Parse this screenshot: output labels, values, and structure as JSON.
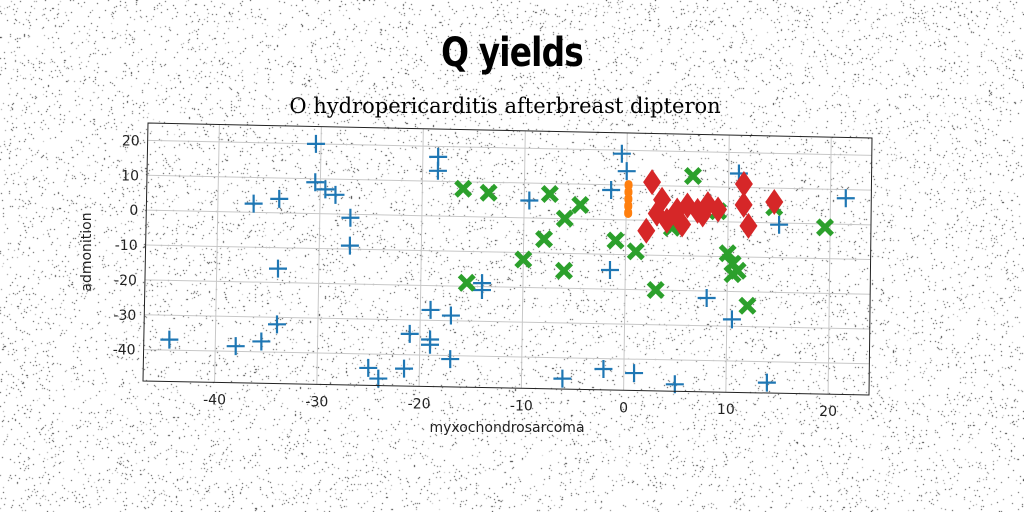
{
  "chart_data": {
    "type": "scatter",
    "title": "Q yields",
    "subtitle": "O hydropericarditis afterbreast dipteron",
    "xlabel": "myxochondrosarcoma",
    "ylabel": "admonition",
    "xlim": [
      -47,
      24
    ],
    "ylim": [
      -49,
      25
    ],
    "xticks": [
      -40,
      -30,
      -20,
      -10,
      0,
      10,
      20
    ],
    "yticks": [
      -40,
      -30,
      -20,
      -10,
      0,
      10,
      20
    ],
    "grid": true,
    "colors": {
      "blue": "#1f77b4",
      "green": "#2ca02c",
      "red": "#d62728",
      "orange": "#ff7f0e"
    },
    "series": [
      {
        "marker": "plus",
        "color": "#1f77b4",
        "points": [
          [
            -44.5,
            -37
          ],
          [
            -38,
            -38.5
          ],
          [
            -35.5,
            -37
          ],
          [
            -34,
            -32
          ],
          [
            -34,
            -16
          ],
          [
            -36.5,
            2.5
          ],
          [
            -34,
            4
          ],
          [
            -30.5,
            20
          ],
          [
            -30.5,
            9
          ],
          [
            -29.5,
            7
          ],
          [
            -28.5,
            5.5
          ],
          [
            -27,
            -1
          ],
          [
            -27,
            -9
          ],
          [
            -25,
            -44
          ],
          [
            -24,
            -47
          ],
          [
            -21.5,
            -44
          ],
          [
            -21,
            -34
          ],
          [
            -19,
            -35.5
          ],
          [
            -19,
            -37
          ],
          [
            -19,
            -27
          ],
          [
            -18.5,
            17
          ],
          [
            -18.5,
            13
          ],
          [
            -17,
            -41
          ],
          [
            -17,
            -28.5
          ],
          [
            -14,
            -19
          ],
          [
            -14,
            -21
          ],
          [
            -9.5,
            5
          ],
          [
            -6,
            -46
          ],
          [
            -2,
            -43
          ],
          [
            -1.5,
            -14.5
          ],
          [
            -1.5,
            8.5
          ],
          [
            -0.5,
            19
          ],
          [
            0,
            14
          ],
          [
            1,
            -44
          ],
          [
            5,
            -47
          ],
          [
            8,
            -22
          ],
          [
            10.5,
            -28
          ],
          [
            11,
            14
          ],
          [
            14,
            -46
          ],
          [
            15,
            -0.5
          ],
          [
            21.5,
            7.5
          ]
        ]
      },
      {
        "marker": "x",
        "color": "#2ca02c",
        "points": [
          [
            -16,
            8
          ],
          [
            -13.5,
            7
          ],
          [
            -15.5,
            -19
          ],
          [
            -10,
            -12
          ],
          [
            -8,
            -6
          ],
          [
            -7.5,
            7
          ],
          [
            -6,
            0
          ],
          [
            -6,
            -15
          ],
          [
            -4.5,
            4
          ],
          [
            -1,
            -6
          ],
          [
            1,
            -9
          ],
          [
            3,
            -20
          ],
          [
            4.5,
            -2
          ],
          [
            6.5,
            13
          ],
          [
            9,
            3
          ],
          [
            10,
            -9
          ],
          [
            10.5,
            -12
          ],
          [
            10.5,
            -15
          ],
          [
            11,
            -14
          ],
          [
            12,
            -24
          ],
          [
            14.5,
            4.5
          ],
          [
            19.5,
            -1
          ]
        ]
      },
      {
        "marker": "diamond",
        "color": "#d62728",
        "points": [
          [
            2,
            -3
          ],
          [
            2.5,
            11
          ],
          [
            3,
            2
          ],
          [
            3.5,
            6
          ],
          [
            4,
            0
          ],
          [
            5,
            3
          ],
          [
            5.5,
            -1
          ],
          [
            6,
            4.5
          ],
          [
            7,
            3
          ],
          [
            7.5,
            2
          ],
          [
            8,
            5
          ],
          [
            9,
            3.5
          ],
          [
            11.5,
            11
          ],
          [
            11.5,
            5
          ],
          [
            12,
            -1
          ],
          [
            14.5,
            6
          ]
        ]
      },
      {
        "marker": "vline",
        "color": "#ff7f0e",
        "points": [
          [
            0.2,
            2
          ],
          [
            0.2,
            4
          ],
          [
            0.2,
            6
          ],
          [
            0.2,
            8
          ],
          [
            0.2,
            10
          ]
        ]
      }
    ]
  }
}
